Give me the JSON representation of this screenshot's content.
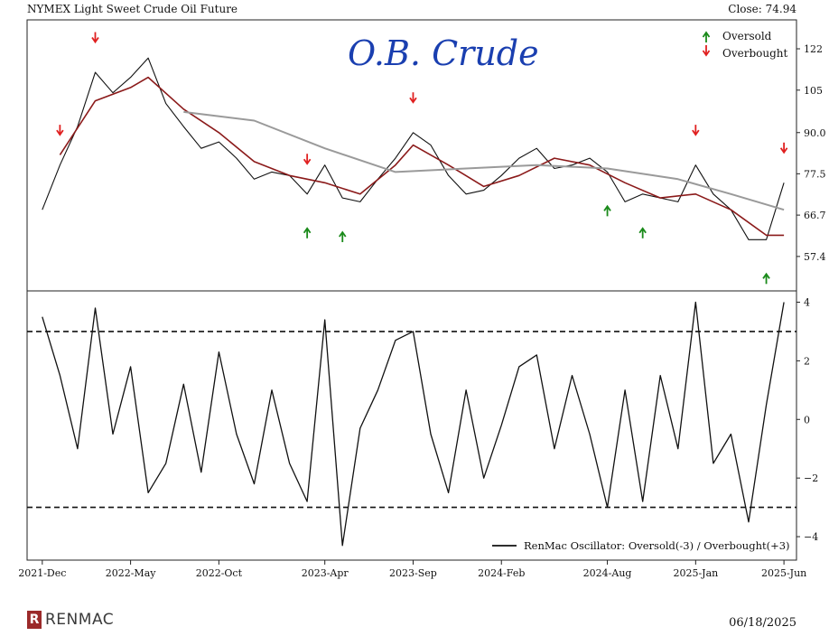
{
  "header": {
    "title": "NYMEX Light Sweet Crude Oil Future",
    "close": "Close: 74.94"
  },
  "footer": {
    "logo_text": "RENMAC",
    "logo_mark": "R",
    "date": "06/18/2025"
  },
  "annotation": {
    "handwritten": "O.B. Crude"
  },
  "colors": {
    "price": "#111111",
    "ma_short": "#8b1a1a",
    "ma_long": "#9a9a9a",
    "oversold": "#1a8a1a",
    "overbought": "#e02020"
  },
  "chart_data": [
    {
      "type": "line",
      "title": "NYMEX Light Sweet Crude Oil Future",
      "yscale": "log",
      "ylim": [
        52,
        132
      ],
      "yticks": [
        "122",
        "105",
        "90.0",
        "77.5",
        "66.7",
        "57.4"
      ],
      "ytick_values": [
        122,
        105,
        90,
        77.5,
        66.7,
        57.4
      ],
      "legend": {
        "position": "top-right",
        "entries": [
          "Oversold",
          "Overbought"
        ]
      },
      "series": [
        {
          "key": "price",
          "x": [
            "2021-12",
            "2022-01",
            "2022-02",
            "2022-03",
            "2022-04",
            "2022-05",
            "2022-06",
            "2022-07",
            "2022-08",
            "2022-09",
            "2022-10",
            "2022-11",
            "2022-12",
            "2023-01",
            "2023-02",
            "2023-03",
            "2023-04",
            "2023-05",
            "2023-06",
            "2023-07",
            "2023-08",
            "2023-09",
            "2023-10",
            "2023-11",
            "2023-12",
            "2024-01",
            "2024-02",
            "2024-03",
            "2024-04",
            "2024-05",
            "2024-06",
            "2024-07",
            "2024-08",
            "2024-09",
            "2024-10",
            "2024-11",
            "2024-12",
            "2025-01",
            "2025-02",
            "2025-03",
            "2025-04",
            "2025-05",
            "2025-06"
          ],
          "values": [
            68,
            80,
            92,
            112,
            104,
            110,
            118,
            100,
            92,
            85,
            87,
            82,
            76,
            78,
            77,
            72,
            80,
            71,
            70,
            76,
            82,
            90,
            86,
            77,
            72,
            73,
            77,
            82,
            85,
            79,
            80,
            82,
            78,
            70,
            72,
            71,
            70,
            80,
            72,
            68,
            61,
            61,
            75
          ]
        },
        {
          "key": "ma_short",
          "x": [
            "2022-01",
            "2022-03",
            "2022-05",
            "2022-06",
            "2022-08",
            "2022-10",
            "2022-12",
            "2023-02",
            "2023-04",
            "2023-06",
            "2023-08",
            "2023-09",
            "2023-11",
            "2024-01",
            "2024-03",
            "2024-05",
            "2024-07",
            "2024-09",
            "2024-11",
            "2025-01",
            "2025-03",
            "2025-05",
            "2025-06"
          ],
          "values": [
            83,
            101,
            106,
            110,
            98,
            90,
            81,
            77,
            75,
            72,
            80,
            86,
            80,
            74,
            77,
            82,
            80,
            75,
            71,
            72,
            68,
            62,
            62
          ]
        },
        {
          "key": "ma_long",
          "x": [
            "2022-08",
            "2022-12",
            "2023-04",
            "2023-08",
            "2023-12",
            "2024-04",
            "2024-08",
            "2024-12",
            "2025-03",
            "2025-06"
          ],
          "values": [
            97,
            94,
            85,
            78,
            79,
            80,
            79,
            76,
            72,
            68
          ]
        }
      ],
      "signals": {
        "overbought": [
          "2022-01",
          "2022-03",
          "2023-03",
          "2023-09",
          "2025-01",
          "2025-06"
        ],
        "oversold": [
          "2023-03",
          "2023-05",
          "2024-08",
          "2024-10",
          "2025-05"
        ]
      }
    },
    {
      "type": "line",
      "legend": {
        "position": "bottom-right",
        "entries": [
          "RenMac Oscillator: Oversold(-3) / Overbought(+3)"
        ]
      },
      "ylim": [
        -4.8,
        4.2
      ],
      "yticks": [
        "4",
        "2",
        "0",
        "−2",
        "−4"
      ],
      "ytick_values": [
        4,
        2,
        0,
        -2,
        -4
      ],
      "reference_lines": [
        3,
        -3
      ],
      "series": [
        {
          "key": "oscillator",
          "name": "RenMac Oscillator: Oversold(-3) / Overbought(+3)",
          "x": [
            "2021-12",
            "2022-01",
            "2022-02",
            "2022-03",
            "2022-04",
            "2022-05",
            "2022-06",
            "2022-07",
            "2022-08",
            "2022-09",
            "2022-10",
            "2022-11",
            "2022-12",
            "2023-01",
            "2023-02",
            "2023-03",
            "2023-04",
            "2023-05",
            "2023-06",
            "2023-07",
            "2023-08",
            "2023-09",
            "2023-10",
            "2023-11",
            "2023-12",
            "2024-01",
            "2024-02",
            "2024-03",
            "2024-04",
            "2024-05",
            "2024-06",
            "2024-07",
            "2024-08",
            "2024-09",
            "2024-10",
            "2024-11",
            "2024-12",
            "2025-01",
            "2025-02",
            "2025-03",
            "2025-04",
            "2025-05",
            "2025-06"
          ],
          "values": [
            3.5,
            1.5,
            -1.0,
            3.8,
            -0.5,
            1.8,
            -2.5,
            -1.5,
            1.2,
            -1.8,
            2.3,
            -0.5,
            -2.2,
            1.0,
            -1.5,
            -2.8,
            3.4,
            -4.3,
            -0.3,
            1.0,
            2.7,
            3.0,
            -0.5,
            -2.5,
            1.0,
            -2.0,
            -0.2,
            1.8,
            2.2,
            -1.0,
            1.5,
            -0.5,
            -3.0,
            1.0,
            -2.8,
            1.5,
            -1.0,
            4.0,
            -1.5,
            -0.5,
            -3.5,
            0.5,
            4.0
          ]
        }
      ]
    }
  ],
  "x_axis": {
    "ticks": [
      "2021-Dec",
      "2022-May",
      "2022-Oct",
      "2023-Apr",
      "2023-Sep",
      "2024-Feb",
      "2024-Aug",
      "2025-Jan",
      "2025-Jun"
    ],
    "tick_dates": [
      "2021-12",
      "2022-05",
      "2022-10",
      "2023-04",
      "2023-09",
      "2024-02",
      "2024-08",
      "2025-01",
      "2025-06"
    ]
  }
}
